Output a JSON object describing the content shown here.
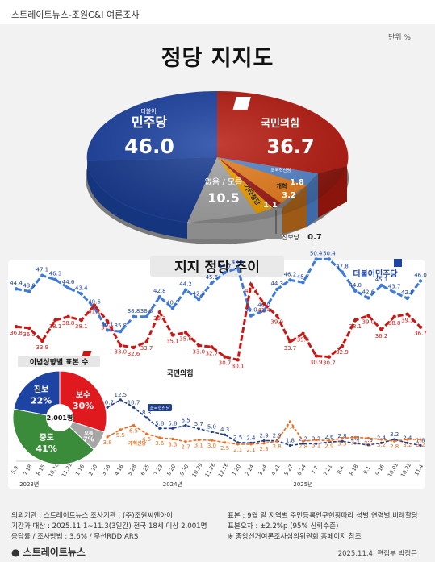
{
  "header": {
    "source": "스트레이트뉴스-조원C&I 여론조사",
    "unit": "단위 %",
    "title": "정당 지지도"
  },
  "chart_data": [
    {
      "type": "pie",
      "title": "정당 지지도",
      "slices": [
        {
          "label": "민주당",
          "value": 46.0,
          "color": "#1e44a3"
        },
        {
          "label": "국민의힘",
          "value": 36.7,
          "color": "#c0190f"
        },
        {
          "label": "조국혁신당",
          "value": 1.8,
          "color": "#5585c9"
        },
        {
          "label": "개혁신당",
          "value": 3.2,
          "color": "#e67d1e"
        },
        {
          "label": "진보당",
          "value": 0.7,
          "color": "#a11b1b"
        },
        {
          "label": "기타정당",
          "value": 1.1,
          "color": "#f0a000"
        },
        {
          "label": "없음/모름",
          "value": 10.5,
          "color": "#a5a5a5"
        }
      ],
      "labels": {
        "dem": "민주당",
        "dem_small": "더불어",
        "ppp": "국민의힘",
        "other": "없음 / 모름",
        "progressive": "진보당",
        "etc": "기타정당",
        "reform": "개혁",
        "cho": "조국혁신당"
      },
      "values_text": {
        "dem": "46.0",
        "ppp": "36.7",
        "other": "10.5",
        "cho": "1.8",
        "reform": "3.2",
        "etc": "1.1",
        "progressive": "0.7"
      }
    },
    {
      "type": "line",
      "title": "지지 정당 추이",
      "x": [
        "5.9",
        "7.18",
        "8.15",
        "10.10",
        "11.21",
        "1.16",
        "2.20",
        "3.26",
        "4.16",
        "5.28",
        "6.25",
        "7.23",
        "8.20",
        "9.30",
        "10.29",
        "11.26",
        "12.16",
        "1.20",
        "2.24",
        "3.24",
        "4.21",
        "5.27",
        "6.24",
        "7.7",
        "7.21",
        "8.4",
        "8.18",
        "9.1",
        "9.16",
        "10.01",
        "10.22",
        "11.4"
      ],
      "year_labels": [
        "2023년",
        "2024년",
        "2025년"
      ],
      "series": [
        {
          "name": "더불어민주당",
          "color": "#3f7ad6",
          "values": [
            44.4,
            43.9,
            47.1,
            46.3,
            44.6,
            43.4,
            40.6,
            36.1,
            35.8,
            38.8,
            38.8,
            42.8,
            40.5,
            44.2,
            42.3,
            45.6,
            47.7,
            48.6,
            39.0,
            40.0,
            44.3,
            46.2,
            45.7,
            50.4,
            50.4,
            47.8,
            44.0,
            42.6,
            45.1,
            43.7,
            42.5,
            46.0
          ]
        },
        {
          "name": "국민의힘",
          "color": "#c71815",
          "values": [
            36.8,
            36.5,
            33.9,
            38.1,
            38.8,
            38.1,
            41.1,
            37.9,
            33.0,
            32.6,
            33.7,
            39.7,
            35.1,
            35.6,
            33.0,
            32.7,
            30.7,
            30.1,
            45.3,
            41.4,
            39.0,
            33.7,
            35.4,
            30.9,
            30.7,
            32.9,
            38.1,
            39.0,
            36.2,
            38.8,
            39.3,
            36.7
          ]
        },
        {
          "name": "조국혁신당",
          "color": "#1e3f8f",
          "values": [
            null,
            null,
            null,
            null,
            null,
            null,
            null,
            10.7,
            12.5,
            10.7,
            8.3,
            5.8,
            5.8,
            6.5,
            5.7,
            5.0,
            4.3,
            2.5,
            2.4,
            2.9,
            2.9,
            1.8,
            2.2,
            2.2,
            2.6,
            2.8,
            2.3,
            1.9,
            2.4,
            3.2,
            2.4,
            1.8
          ]
        },
        {
          "name": "개혁신당",
          "color": "#ef6c1e",
          "values": [
            null,
            null,
            null,
            null,
            null,
            null,
            null,
            3.8,
            5.5,
            6.5,
            4.5,
            3.6,
            3.3,
            2.7,
            3.1,
            3.0,
            2.5,
            2.1,
            2.1,
            2.3,
            2.8,
            7.4,
            2.8,
            3.1,
            2.9,
            3.5,
            3.7,
            3.5,
            3.2,
            2.8,
            3.2,
            3.2
          ]
        }
      ],
      "label_dem": "더불어민주당",
      "label_ppp": "국민의힘",
      "label_cho": "조국혁신당",
      "label_reform": "개혁신당",
      "value_labels_dem": [
        "44.4",
        "43.9",
        "47.1",
        "46.3",
        "44.6",
        "43.4",
        "40.6",
        "36.1",
        "35.8",
        "38.8",
        "38.8",
        "42.8",
        "40.5",
        "44.2",
        "42.3",
        "45.6",
        "47.7",
        "48.6",
        "39.0",
        "40.0",
        "44.3",
        "46.2",
        "45.7",
        "50.4",
        "50.4",
        "47.8",
        "44.0",
        "42.6",
        "45.1",
        "43.7",
        "42.5",
        "46.0"
      ],
      "value_labels_ppp": [
        "36.8",
        "36.5",
        "33.9",
        "38.1",
        "38.8",
        "38.1",
        "41.1",
        "37.9",
        "33.0",
        "32.6",
        "33.7",
        "39.7",
        "35.1",
        "35.6",
        "33.0",
        "32.7",
        "30.7",
        "30.1",
        "45.3",
        "41.4",
        "39.0",
        "33.7",
        "35.4",
        "30.9",
        "30.7",
        "32.9",
        "38.1",
        "39.0",
        "36.2",
        "38.8",
        "39.3",
        "36.7"
      ],
      "value_labels_cho": [
        "",
        "",
        "",
        "",
        "",
        "",
        "",
        "10.7",
        "12.5",
        "10.7",
        "8.3",
        "5.8",
        "5.8",
        "6.5",
        "5.7",
        "5.0",
        "4.3",
        "2.5",
        "2.4",
        "2.9",
        "2.9",
        "1.8",
        "2.2",
        "2.2",
        "2.6",
        "2.8",
        "2.3",
        "1.9",
        "2.4",
        "3.2",
        "2.4",
        "1.8"
      ],
      "value_labels_reform": [
        "",
        "",
        "",
        "",
        "",
        "",
        "",
        "3.8",
        "5.5",
        "6.5",
        "4.5",
        "3.6",
        "3.3",
        "2.7",
        "3.1",
        "3.0",
        "2.5",
        "2.1",
        "2.1",
        "2.3",
        "2.8",
        "7.4",
        "2.8",
        "3.1",
        "2.9",
        "3.5",
        "3.7",
        "3.5",
        "3.2",
        "2.8",
        "3.2",
        "3.2"
      ]
    },
    {
      "type": "pie",
      "title": "이념성향별 표본 수",
      "center_label": "2,001명",
      "slices": [
        {
          "label": "보수",
          "value": 30,
          "color": "#e0191f",
          "text": "30%"
        },
        {
          "label": "모름",
          "value": 7,
          "color": "#a6a6a6",
          "text": "7%"
        },
        {
          "label": "중도",
          "value": 41,
          "color": "#3a8b3a",
          "text": "41%"
        },
        {
          "label": "진보",
          "value": 22,
          "color": "#1e44a3",
          "text": "22%"
        }
      ]
    }
  ],
  "footer": {
    "l1": "의뢰기관 : 스트레이트뉴스     조사기관 : (주)조원씨앤아이",
    "l2": "기간과 대상 : 2025.11.1~11.3(3일간)   전국 18세 이상  2,001명",
    "l3": "응답률 / 조사방법 : 3.6% / 무선RDD ARS",
    "r1": "표본 : 9월 말 지역별 주민등록인구현황따라 성별 연령별 비례할당",
    "r2": "표본오차 : ±2.2%p (95% 신뢰수준)",
    "r3": "※ 중앙선거여론조사심의위원회 홈페이지 참조",
    "brand": "스트레이트뉴스",
    "date": "2025.11.4.  편집부 박정은"
  }
}
